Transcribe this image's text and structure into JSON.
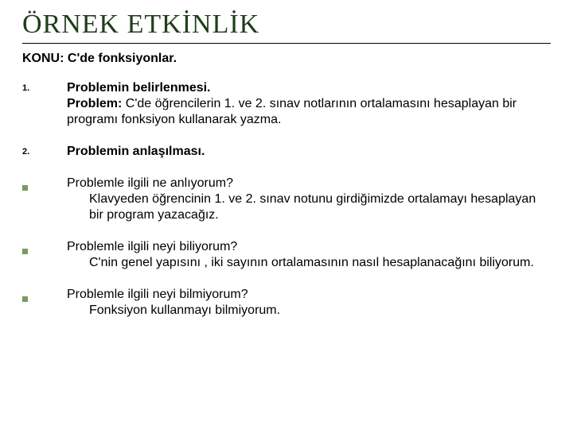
{
  "title": "ÖRNEK  ETKİNLİK",
  "subtitle": "KONU: C'de fonksiyonlar.",
  "colors": {
    "title": "#203d1b",
    "bullet": "#7d985f",
    "text": "#000000",
    "background": "#ffffff",
    "divider": "#000000"
  },
  "items": [
    {
      "marker": "1.",
      "type": "number",
      "line1_bold": "Problemin belirlenmesi.",
      "line2_bold": "Problem:",
      "line2_rest": " C'de öğrencilerin 1. ve 2. sınav notlarının ortalamasını hesaplayan bir programı fonksiyon kullanarak yazma."
    },
    {
      "marker": "2.",
      "type": "number",
      "line1_bold": "Problemin anlaşılması."
    },
    {
      "type": "bullet",
      "q": "Problemle ilgili ne anlıyorum?",
      "a": "Klavyeden öğrencinin 1. ve 2. sınav notunu girdiğimizde  ortalamayı hesaplayan bir program yazacağız."
    },
    {
      "type": "bullet",
      "q": "Problemle ilgili neyi biliyorum?",
      "a": "C'nin genel yapısını , iki sayının ortalamasının nasıl hesaplanacağını biliyorum."
    },
    {
      "type": "bullet",
      "q": "Problemle ilgili neyi bilmiyorum?",
      "a": "Fonksiyon kullanmayı bilmiyorum."
    }
  ]
}
